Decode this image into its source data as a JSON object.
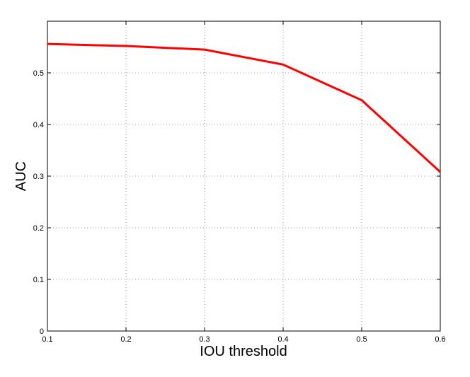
{
  "chart_data": {
    "type": "line",
    "x_label": "IOU threshold",
    "y_label": "AUC",
    "x": [
      0.1,
      0.2,
      0.3,
      0.4,
      0.5,
      0.6
    ],
    "series": [
      {
        "color": "#ff0000",
        "values": [
          0.556,
          0.552,
          0.545,
          0.516,
          0.447,
          0.308
        ]
      }
    ],
    "xlim": [
      0.1,
      0.6
    ],
    "xticks": [
      0.1,
      0.2,
      0.3,
      0.4,
      0.5,
      0.6
    ],
    "ylim": [
      0,
      0.6
    ],
    "yticks": [
      0,
      0.1,
      0.2,
      0.3,
      0.4,
      0.5
    ],
    "grid": true
  }
}
